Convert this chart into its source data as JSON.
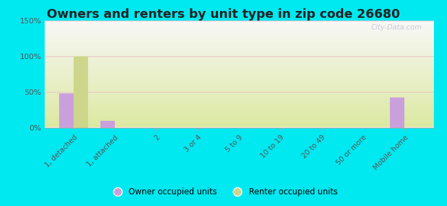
{
  "title": "Owners and renters by unit type in zip code 26680",
  "categories": [
    "1, detached",
    "1, attached",
    "2",
    "3 or 4",
    "5 to 9",
    "10 to 19",
    "20 to 49",
    "50 or more",
    "Mobile home"
  ],
  "owner_values": [
    48,
    10,
    0,
    0,
    0,
    0,
    0,
    0,
    42
  ],
  "renter_values": [
    100,
    0,
    0,
    0,
    0,
    0,
    0,
    0,
    0
  ],
  "owner_color": "#c9a0dc",
  "renter_color": "#cdd68a",
  "background_outer": "#00e8f0",
  "background_inner_top": "#f8f8f8",
  "background_inner_bottom": "#dce8a0",
  "ylim": [
    0,
    150
  ],
  "yticks": [
    0,
    50,
    100,
    150
  ],
  "ytick_labels": [
    "0%",
    "50%",
    "100%",
    "150%"
  ],
  "bar_width": 0.35,
  "title_fontsize": 13,
  "legend_label_owner": "Owner occupied units",
  "legend_label_renter": "Renter occupied units",
  "watermark": "City-Data.com",
  "grid_color": "#e8e8d8",
  "axis_color": "#aaaaaa",
  "tick_label_color": "#555555",
  "title_color": "#222222"
}
